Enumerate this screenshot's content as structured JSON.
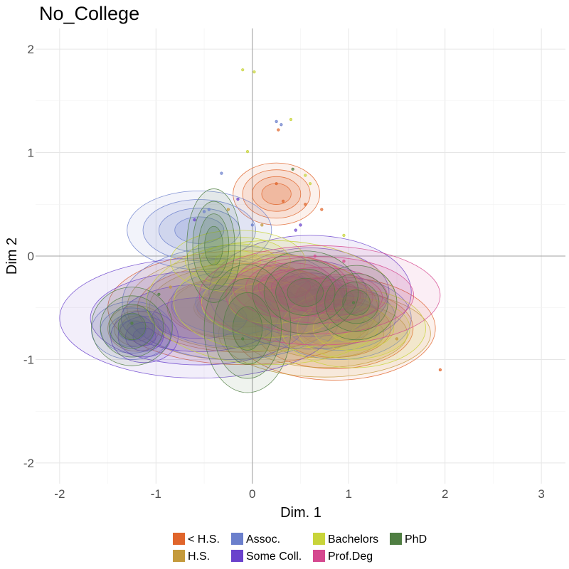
{
  "chart_data": {
    "type": "density-contour-scatter",
    "title": "No_College",
    "xlabel": "Dim. 1",
    "ylabel": "Dim 2",
    "xlim": [
      -2.25,
      3.25
    ],
    "ylim": [
      -2.2,
      2.2
    ],
    "x_ticks": [
      -2,
      -1,
      0,
      1,
      2,
      3
    ],
    "y_ticks": [
      -2,
      -1,
      0,
      1,
      2
    ],
    "x_tick_labels": [
      "-2",
      "-1",
      "0",
      "1",
      "2",
      "3"
    ],
    "y_tick_labels": [
      "-2",
      "-1",
      "0",
      "1",
      "2"
    ],
    "grid": true,
    "legend_position": "bottom",
    "series": [
      {
        "name": "< H.S.",
        "color": "#e0652b",
        "clusters": [
          {
            "cx": -0.1,
            "cy": -0.5,
            "rx": 1.4,
            "ry": 0.55
          },
          {
            "cx": 0.85,
            "cy": -0.7,
            "rx": 1.05,
            "ry": 0.5
          },
          {
            "cx": 0.25,
            "cy": 0.6,
            "rx": 0.45,
            "ry": 0.3
          }
        ],
        "points": [
          [
            0.25,
            0.7
          ],
          [
            0.32,
            0.53
          ],
          [
            0.55,
            0.5
          ],
          [
            0.72,
            0.45
          ],
          [
            0.27,
            1.22
          ],
          [
            1.95,
            -1.1
          ]
        ]
      },
      {
        "name": "H.S.",
        "color": "#c49a3c",
        "clusters": [
          {
            "cx": -0.25,
            "cy": -0.5,
            "rx": 1.05,
            "ry": 0.5
          },
          {
            "cx": 0.75,
            "cy": -0.75,
            "rx": 1.1,
            "ry": 0.42
          },
          {
            "cx": -1.2,
            "cy": -0.7,
            "rx": 0.3,
            "ry": 0.22
          }
        ],
        "points": [
          [
            -0.25,
            0.45
          ],
          [
            0.1,
            0.3
          ],
          [
            1.5,
            -0.8
          ],
          [
            -0.85,
            -0.3
          ]
        ]
      },
      {
        "name": "Assoc.",
        "color": "#6b7fcc",
        "clusters": [
          {
            "cx": -0.55,
            "cy": 0.25,
            "rx": 0.75,
            "ry": 0.38
          },
          {
            "cx": -0.2,
            "cy": -0.45,
            "rx": 1.15,
            "ry": 0.55
          },
          {
            "cx": 0.9,
            "cy": -0.6,
            "rx": 0.75,
            "ry": 0.4
          },
          {
            "cx": -1.25,
            "cy": -0.72,
            "rx": 0.42,
            "ry": 0.28
          }
        ],
        "points": [
          [
            -0.32,
            0.8
          ],
          [
            -0.45,
            0.45
          ],
          [
            -0.5,
            0.43
          ],
          [
            0.25,
            1.3
          ],
          [
            0.3,
            1.27
          ],
          [
            0.0,
            0.3
          ]
        ]
      },
      {
        "name": "Some Coll.",
        "color": "#6a42cc",
        "clusters": [
          {
            "cx": -0.55,
            "cy": -0.6,
            "rx": 1.45,
            "ry": 0.58
          },
          {
            "cx": 0.6,
            "cy": -0.35,
            "rx": 1.05,
            "ry": 0.55
          },
          {
            "cx": -1.12,
            "cy": -0.78,
            "rx": 0.35,
            "ry": 0.25
          }
        ],
        "points": [
          [
            -0.15,
            0.55
          ],
          [
            0.45,
            0.25
          ],
          [
            0.5,
            0.3
          ],
          [
            -0.6,
            0.35
          ]
        ]
      },
      {
        "name": "Bachelors",
        "color": "#c8d43a",
        "clusters": [
          {
            "cx": 0.2,
            "cy": -0.45,
            "rx": 1.3,
            "ry": 0.6
          },
          {
            "cx": 1.05,
            "cy": -0.7,
            "rx": 0.75,
            "ry": 0.38
          },
          {
            "cx": -0.15,
            "cy": -0.05,
            "rx": 0.7,
            "ry": 0.3
          }
        ],
        "points": [
          [
            -0.1,
            1.8
          ],
          [
            0.02,
            1.78
          ],
          [
            0.4,
            1.32
          ],
          [
            -0.05,
            1.01
          ],
          [
            0.55,
            0.78
          ],
          [
            0.6,
            0.7
          ],
          [
            0.95,
            0.2
          ]
        ]
      },
      {
        "name": "Prof.Deg",
        "color": "#d5488f",
        "clusters": [
          {
            "cx": 0.7,
            "cy": -0.38,
            "rx": 1.25,
            "ry": 0.48
          },
          {
            "cx": 0.4,
            "cy": -0.3,
            "rx": 0.6,
            "ry": 0.3
          },
          {
            "cx": 0.9,
            "cy": -0.4,
            "rx": 0.45,
            "ry": 0.22
          }
        ],
        "points": [
          [
            0.95,
            -0.05
          ],
          [
            0.65,
            0.0
          ]
        ]
      },
      {
        "name": "PhD",
        "color": "#4f7e42",
        "clusters": [
          {
            "cx": -0.05,
            "cy": -0.7,
            "rx": 0.45,
            "ry": 0.62
          },
          {
            "cx": -0.4,
            "cy": 0.1,
            "rx": 0.28,
            "ry": 0.55
          },
          {
            "cx": 1.08,
            "cy": -0.45,
            "rx": 0.42,
            "ry": 0.36
          },
          {
            "cx": -1.25,
            "cy": -0.68,
            "rx": 0.42,
            "ry": 0.38
          },
          {
            "cx": 0.55,
            "cy": -0.35,
            "rx": 0.55,
            "ry": 0.4
          }
        ],
        "points": [
          [
            0.42,
            0.84
          ],
          [
            -0.97,
            -0.37
          ],
          [
            1.05,
            -0.45
          ],
          [
            -1.25,
            -0.65
          ],
          [
            -0.1,
            -0.8
          ]
        ]
      }
    ]
  }
}
